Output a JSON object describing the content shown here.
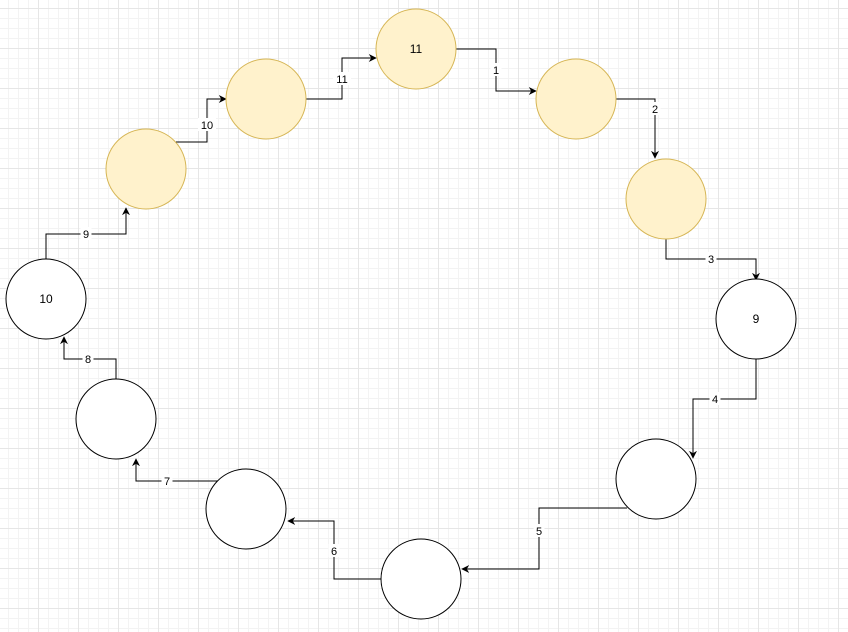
{
  "colors": {
    "highlight_fill": "#fff2cc",
    "highlight_stroke": "#d6b656",
    "normal_fill": "#ffffff",
    "normal_stroke": "#000000",
    "edge": "#000000"
  },
  "nodes": [
    {
      "id": "n1",
      "label": "11",
      "highlighted": true
    },
    {
      "id": "n2",
      "label": "",
      "highlighted": true
    },
    {
      "id": "n3",
      "label": "",
      "highlighted": true
    },
    {
      "id": "n4",
      "label": "9",
      "highlighted": false
    },
    {
      "id": "n5",
      "label": "",
      "highlighted": false
    },
    {
      "id": "n6",
      "label": "",
      "highlighted": false
    },
    {
      "id": "n7",
      "label": "",
      "highlighted": false
    },
    {
      "id": "n8",
      "label": "",
      "highlighted": false
    },
    {
      "id": "n9",
      "label": "10",
      "highlighted": false
    },
    {
      "id": "n10",
      "label": "",
      "highlighted": true
    },
    {
      "id": "n11",
      "label": "",
      "highlighted": true
    }
  ],
  "edges": [
    {
      "from": "n1",
      "to": "n2",
      "label": "1"
    },
    {
      "from": "n2",
      "to": "n3",
      "label": "2"
    },
    {
      "from": "n3",
      "to": "n4",
      "label": "3"
    },
    {
      "from": "n4",
      "to": "n5",
      "label": "4"
    },
    {
      "from": "n5",
      "to": "n6",
      "label": "5"
    },
    {
      "from": "n6",
      "to": "n7",
      "label": "6"
    },
    {
      "from": "n7",
      "to": "n8",
      "label": "7"
    },
    {
      "from": "n8",
      "to": "n9",
      "label": "8"
    },
    {
      "from": "n9",
      "to": "n10",
      "label": "9"
    },
    {
      "from": "n10",
      "to": "n11",
      "label": "10"
    },
    {
      "from": "n11",
      "to": "n1",
      "label": "11"
    }
  ]
}
